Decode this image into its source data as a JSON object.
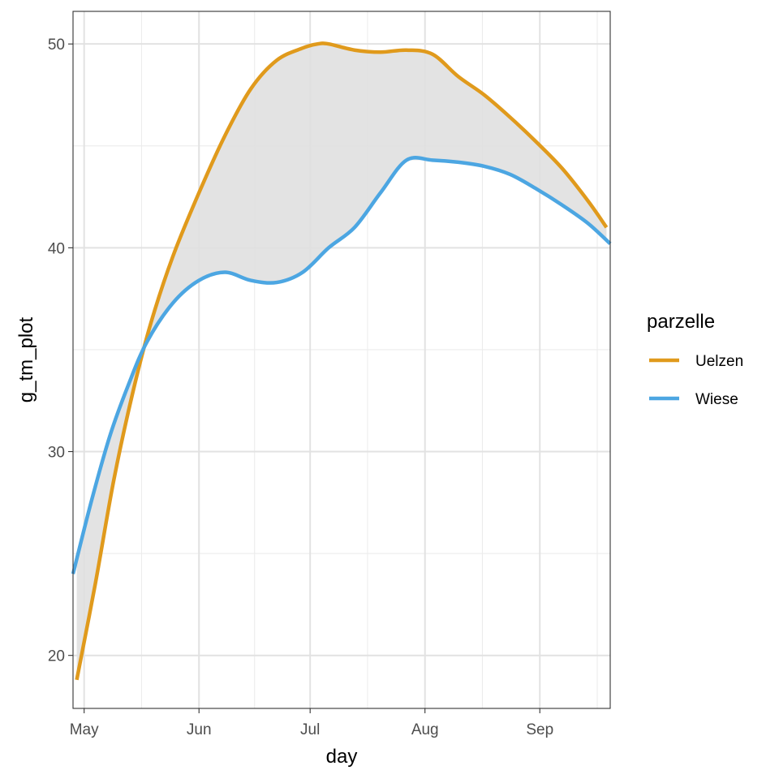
{
  "chart_data": {
    "type": "line",
    "title": "",
    "xlabel": "day",
    "ylabel": "g_tm_plot",
    "x_tick_labels": [
      "May",
      "Jun",
      "Jul",
      "Aug",
      "Sep"
    ],
    "y_ticks": [
      20,
      30,
      40,
      50
    ],
    "y_tick_labels": [
      "20",
      "30",
      "40",
      "50"
    ],
    "ylim": [
      17.4,
      51.6
    ],
    "xlim_days": [
      -3,
      142
    ],
    "x_tick_days": [
      0,
      31,
      61,
      92,
      123
    ],
    "grid": true,
    "ribbon_between_series": true,
    "ribbon_color": "#e0e0e0",
    "legend": {
      "title": "parzelle",
      "placement": "right"
    },
    "series": [
      {
        "name": "Uelzen",
        "color": "#e09a1c",
        "x": [
          -2,
          3,
          8,
          13,
          18,
          24,
          31,
          38,
          45,
          52,
          59,
          63,
          66,
          73,
          80,
          87,
          94,
          101,
          108,
          115,
          122,
          129,
          136,
          141
        ],
        "y": [
          18.8,
          23.5,
          28.6,
          32.8,
          36.3,
          39.6,
          42.7,
          45.5,
          47.8,
          49.2,
          49.8,
          50.0,
          50.0,
          49.7,
          49.6,
          49.7,
          49.5,
          48.4,
          47.5,
          46.4,
          45.2,
          43.9,
          42.3,
          41.0
        ]
      },
      {
        "name": "Wiese",
        "color": "#4ca6e2",
        "x": [
          -3,
          2,
          7,
          12,
          17,
          24,
          31,
          38,
          45,
          52,
          59,
          66,
          73,
          80,
          87,
          94,
          101,
          108,
          115,
          122,
          129,
          136,
          142
        ],
        "y": [
          24.0,
          27.6,
          30.8,
          33.3,
          35.4,
          37.3,
          38.4,
          38.8,
          38.4,
          38.3,
          38.8,
          40.0,
          41.0,
          42.7,
          44.3,
          44.3,
          44.2,
          44.0,
          43.6,
          42.9,
          42.1,
          41.2,
          40.2
        ]
      }
    ]
  }
}
